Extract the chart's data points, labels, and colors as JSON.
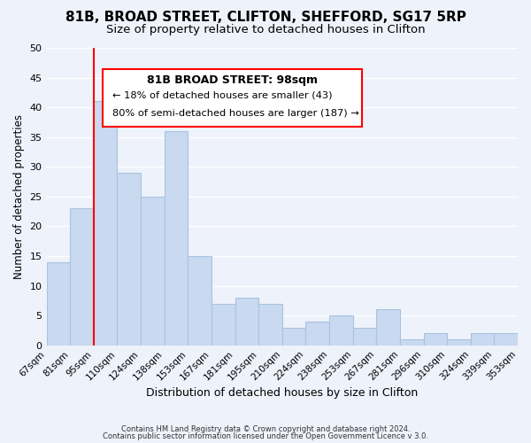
{
  "title": "81B, BROAD STREET, CLIFTON, SHEFFORD, SG17 5RP",
  "subtitle": "Size of property relative to detached houses in Clifton",
  "xlabel": "Distribution of detached houses by size in Clifton",
  "ylabel": "Number of detached properties",
  "tick_labels": [
    "67sqm",
    "81sqm",
    "95sqm",
    "110sqm",
    "124sqm",
    "138sqm",
    "153sqm",
    "167sqm",
    "181sqm",
    "195sqm",
    "210sqm",
    "224sqm",
    "238sqm",
    "253sqm",
    "267sqm",
    "281sqm",
    "296sqm",
    "310sqm",
    "324sqm",
    "339sqm",
    "353sqm"
  ],
  "bar_heights": [
    14,
    23,
    41,
    29,
    25,
    36,
    15,
    7,
    8,
    7,
    3,
    4,
    5,
    3,
    6,
    1,
    2,
    1,
    2,
    2
  ],
  "bar_color": "#c9d9f0",
  "bar_edge_color": "#a8c4e0",
  "ylim": [
    0,
    50
  ],
  "yticks": [
    0,
    5,
    10,
    15,
    20,
    25,
    30,
    35,
    40,
    45,
    50
  ],
  "red_line_x": 2,
  "annotation_title": "81B BROAD STREET: 98sqm",
  "annotation_line1": "← 18% of detached houses are smaller (43)",
  "annotation_line2": "80% of semi-detached houses are larger (187) →",
  "footer1": "Contains HM Land Registry data © Crown copyright and database right 2024.",
  "footer2": "Contains public sector information licensed under the Open Government Licence v 3.0.",
  "background_color": "#eef2fb",
  "grid_color": "#ffffff",
  "title_fontsize": 11,
  "subtitle_fontsize": 9.5
}
